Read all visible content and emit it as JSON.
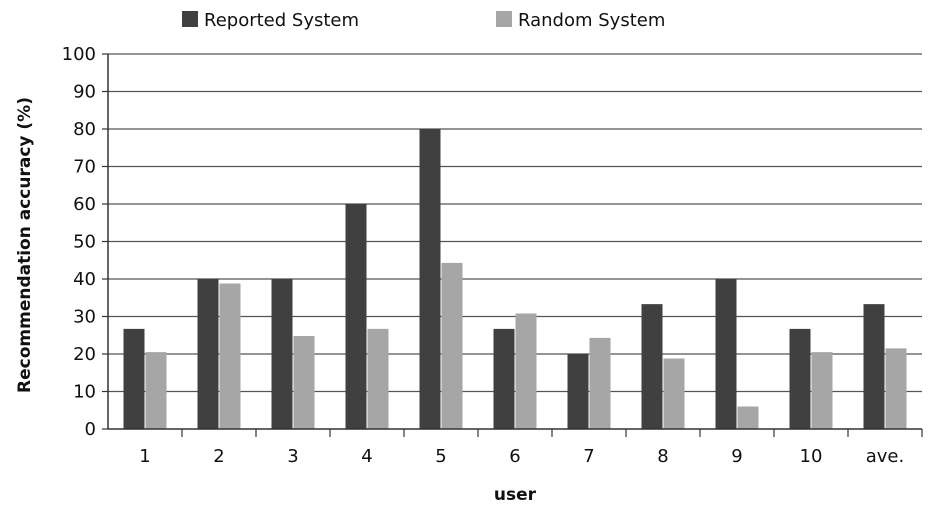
{
  "chart_data": {
    "type": "bar",
    "title": "",
    "xlabel": "user",
    "ylabel": "Recommendation accuracy  (%)",
    "categories": [
      "1",
      "2",
      "3",
      "4",
      "5",
      "6",
      "7",
      "8",
      "9",
      "10",
      "ave."
    ],
    "series": [
      {
        "name": "Reported System",
        "color": "#404040",
        "values": [
          26.7,
          40,
          40,
          60,
          80,
          26.7,
          20,
          33.3,
          40,
          26.7,
          33.3
        ]
      },
      {
        "name": "Random System",
        "color": "#a6a6a6",
        "values": [
          20.5,
          38.8,
          24.8,
          26.7,
          44.3,
          30.8,
          24.3,
          18.8,
          6,
          20.5,
          21.5
        ]
      }
    ],
    "ylim": [
      0,
      100
    ],
    "yticks": [
      "0",
      "10",
      "20",
      "30",
      "40",
      "50",
      "60",
      "70",
      "80",
      "90",
      "100"
    ],
    "grid": true,
    "legend_position": "top"
  }
}
